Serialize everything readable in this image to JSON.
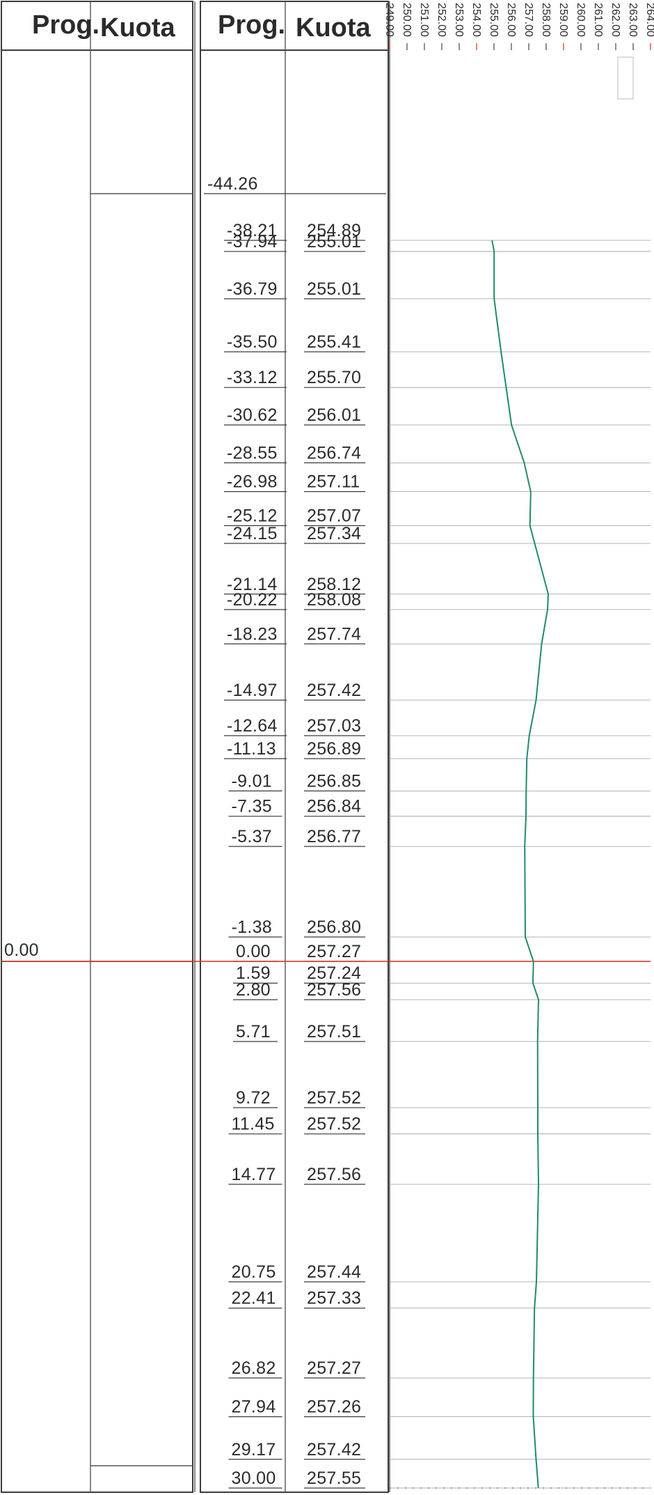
{
  "headers": {
    "left_prog": "Prog.",
    "left_kuota": "Kuota",
    "right_prog": "Prog.",
    "right_kuota": "Kuota"
  },
  "left_table": {
    "axis_label": "0.00"
  },
  "colors": {
    "profile": "#1f8a73",
    "axis_line": "#d9281c",
    "grid": "#9a9a9a"
  },
  "chart_data": {
    "type": "line",
    "title": "",
    "xlabel": "Kuota",
    "ylabel": "Prog.",
    "orientation": "vertical-profile",
    "elevation_ticks": [
      "249.00",
      "250.00",
      "251.00",
      "252.00",
      "253.00",
      "254.00",
      "255.00",
      "256.00",
      "257.00",
      "258.00",
      "259.00",
      "260.00",
      "261.00",
      "262.00",
      "263.00",
      "264.00"
    ],
    "xlim": [
      249,
      264
    ],
    "ylim": [
      -44.26,
      30.0
    ],
    "first_station_label": "-44.26",
    "stations": [
      "-38.21",
      "-37.94",
      "-36.79",
      "-35.50",
      "-33.12",
      "-30.62",
      "-28.55",
      "-26.98",
      "-25.12",
      "-24.15",
      "-21.14",
      "-20.22",
      "-18.23",
      "-14.97",
      "-12.64",
      "-11.13",
      "-9.01",
      "-7.35",
      "-5.37",
      "-1.38",
      "0.00",
      "1.59",
      "2.80",
      "5.71",
      "9.72",
      "11.45",
      "14.77",
      "20.75",
      "22.41",
      "26.82",
      "27.94",
      "29.17",
      "30.00"
    ],
    "elevations": [
      "254.89",
      "255.01",
      "255.01",
      "255.41",
      "255.70",
      "256.01",
      "256.74",
      "257.11",
      "257.07",
      "257.34",
      "258.12",
      "258.08",
      "257.74",
      "257.42",
      "257.03",
      "256.89",
      "256.85",
      "256.84",
      "256.77",
      "256.80",
      "257.27",
      "257.24",
      "257.56",
      "257.51",
      "257.52",
      "257.52",
      "257.56",
      "257.44",
      "257.33",
      "257.27",
      "257.26",
      "257.42",
      "257.55"
    ],
    "axis_station": 0.0
  }
}
